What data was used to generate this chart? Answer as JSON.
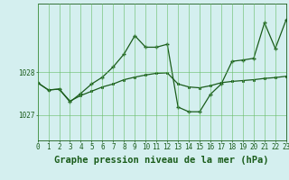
{
  "title": "Graphe pression niveau de la mer (hPa)",
  "background_color": "#d4efef",
  "line_color": "#1a5c1a",
  "grid_color": "#66bb66",
  "xlim": [
    0,
    23
  ],
  "ylim": [
    1026.4,
    1029.6
  ],
  "yticks": [
    1027,
    1028
  ],
  "xticks": [
    0,
    1,
    2,
    3,
    4,
    5,
    6,
    7,
    8,
    9,
    10,
    11,
    12,
    13,
    14,
    15,
    16,
    17,
    18,
    19,
    20,
    21,
    22,
    23
  ],
  "series1_x": [
    0,
    1,
    2,
    3,
    4,
    5,
    6,
    7,
    8,
    9,
    10,
    11,
    12,
    13,
    14,
    15,
    16,
    17,
    18,
    19,
    20,
    21,
    22,
    23
  ],
  "series1_y": [
    1027.75,
    1027.58,
    1027.6,
    1027.32,
    1027.45,
    1027.55,
    1027.65,
    1027.72,
    1027.82,
    1027.88,
    1027.93,
    1027.97,
    1027.98,
    1027.72,
    1027.65,
    1027.63,
    1027.68,
    1027.75,
    1027.78,
    1027.8,
    1027.82,
    1027.85,
    1027.87,
    1027.9
  ],
  "series2_x": [
    0,
    1,
    2,
    3,
    4,
    5,
    6,
    7,
    8,
    9,
    10,
    11,
    12,
    13,
    14,
    15,
    16,
    17,
    18,
    19,
    20,
    21,
    22,
    23
  ],
  "series2_y": [
    1027.75,
    1027.58,
    1027.6,
    1027.3,
    1027.5,
    1027.72,
    1027.88,
    1028.12,
    1028.42,
    1028.85,
    1028.58,
    1028.58,
    1028.65,
    1027.18,
    1027.07,
    1027.07,
    1027.48,
    1027.72,
    1028.25,
    1028.28,
    1028.32,
    1029.15,
    1028.55,
    1029.22
  ],
  "title_fontsize": 7.5,
  "tick_fontsize": 5.5,
  "title_color": "#1a5c1a"
}
